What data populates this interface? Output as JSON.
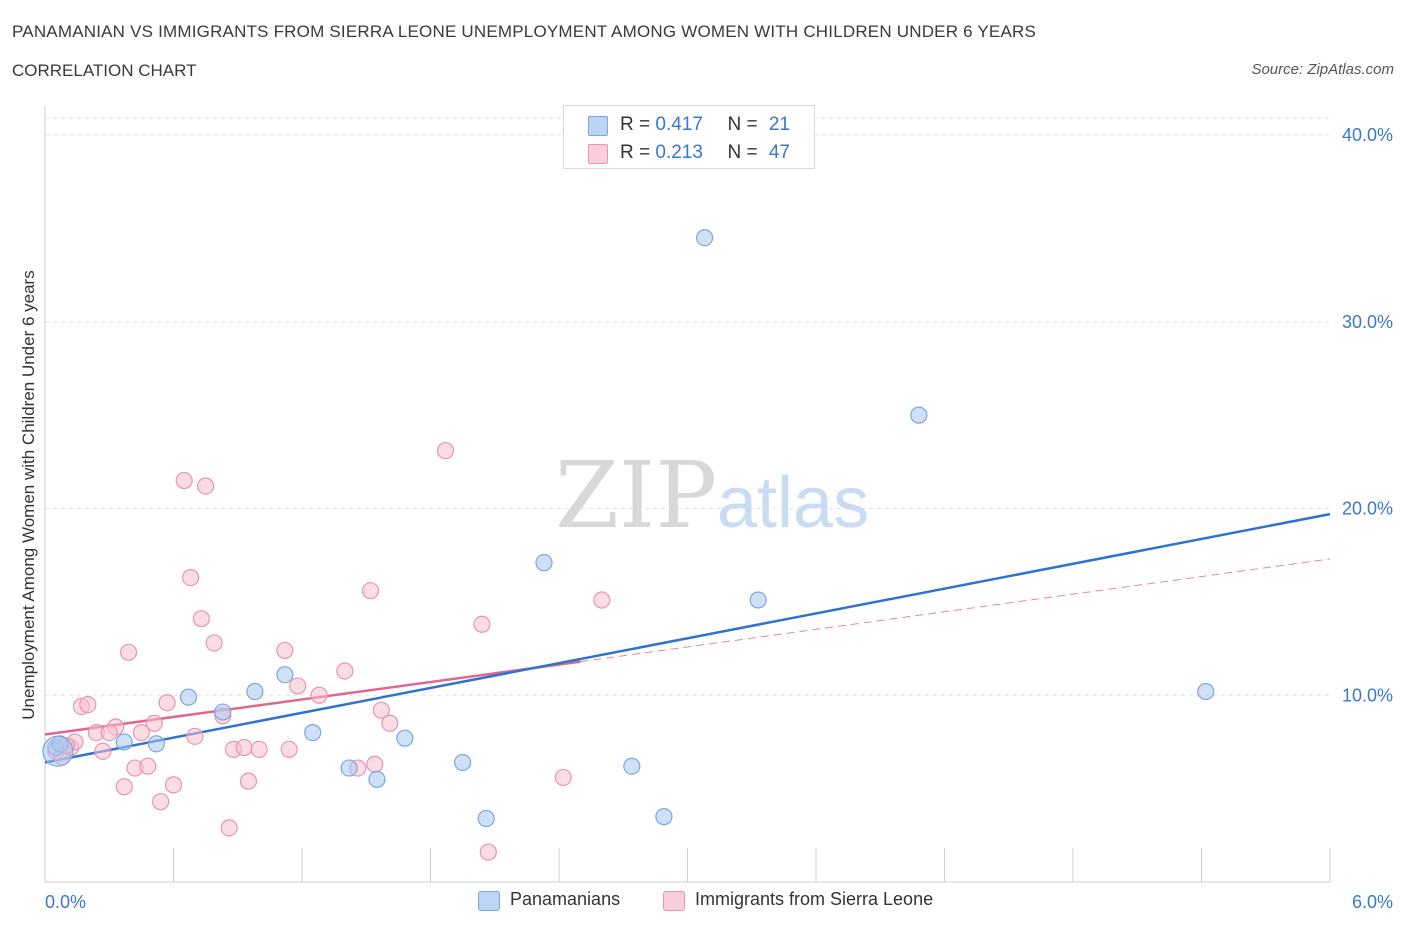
{
  "header": {
    "title": "PANAMANIAN VS IMMIGRANTS FROM SIERRA LEONE UNEMPLOYMENT AMONG WOMEN WITH CHILDREN UNDER 6 YEARS",
    "subtitle": "CORRELATION CHART",
    "source": "Source: ZipAtlas.com"
  },
  "watermark": {
    "zip": "ZIP",
    "atlas": "atlas"
  },
  "legend_top": [
    {
      "r_label": "R = ",
      "r_value": "0.417",
      "n_label": "N = ",
      "n_value": "21"
    },
    {
      "r_label": "R = ",
      "r_value": "0.213",
      "n_label": "N = ",
      "n_value": "47"
    }
  ],
  "legend_bottom": {
    "series0": "Panamanians",
    "series1": "Immigrants from Sierra Leone"
  },
  "chart_data": {
    "type": "scatter",
    "title": "PANAMANIAN VS IMMIGRANTS FROM SIERRA LEONE UNEMPLOYMENT AMONG WOMEN WITH CHILDREN UNDER 6 YEARS",
    "subtitle": "CORRELATION CHART",
    "xlabel": "",
    "ylabel": "Unemployment Among Women with Children Under 6 years",
    "xlim": [
      0,
      6
    ],
    "ylim": [
      0,
      40
    ],
    "x_tick_labels": [
      "0.0%",
      "6.0%"
    ],
    "y_ticks": [
      10,
      20,
      30,
      40
    ],
    "y_tick_labels": [
      "10.0%",
      "20.0%",
      "30.0%",
      "40.0%"
    ],
    "grid": true,
    "legend_position": "top-center",
    "series": [
      {
        "name": "Panamanians",
        "color": "#a9c8f0",
        "stroke": "#7aa7e0",
        "line_color": "#2f72d0",
        "R": 0.417,
        "N": 21,
        "trend": [
          [
            0.0,
            6.4
          ],
          [
            6.0,
            19.7
          ]
        ],
        "points": [
          [
            0.05,
            7.2
          ],
          [
            0.07,
            7.4
          ],
          [
            0.37,
            7.5
          ],
          [
            0.52,
            7.4
          ],
          [
            0.67,
            9.9
          ],
          [
            0.83,
            9.1
          ],
          [
            0.98,
            10.2
          ],
          [
            1.12,
            11.1
          ],
          [
            1.25,
            8.0
          ],
          [
            1.42,
            6.1
          ],
          [
            1.55,
            5.5
          ],
          [
            1.68,
            7.7
          ],
          [
            1.95,
            6.4
          ],
          [
            2.06,
            3.4
          ],
          [
            2.33,
            17.1
          ],
          [
            2.74,
            6.2
          ],
          [
            2.89,
            3.5
          ],
          [
            3.08,
            34.5
          ],
          [
            3.33,
            15.1
          ],
          [
            4.08,
            25.0
          ],
          [
            5.42,
            10.2
          ]
        ]
      },
      {
        "name": "Immigrants from Sierra Leone",
        "color": "#f6bfd0",
        "stroke": "#e994b0",
        "line_color": "#e06890",
        "R": 0.213,
        "N": 47,
        "trend": [
          [
            0.0,
            7.9
          ],
          [
            2.5,
            11.8
          ]
        ],
        "trend_extension": [
          [
            2.5,
            11.8
          ],
          [
            6.0,
            17.3
          ]
        ],
        "points": [
          [
            0.05,
            7.0
          ],
          [
            0.08,
            6.7
          ],
          [
            0.12,
            7.2
          ],
          [
            0.14,
            7.5
          ],
          [
            0.17,
            9.4
          ],
          [
            0.2,
            9.5
          ],
          [
            0.24,
            8.0
          ],
          [
            0.27,
            7.0
          ],
          [
            0.33,
            8.3
          ],
          [
            0.37,
            5.1
          ],
          [
            0.39,
            12.3
          ],
          [
            0.42,
            6.1
          ],
          [
            0.45,
            8.0
          ],
          [
            0.48,
            6.2
          ],
          [
            0.51,
            8.5
          ],
          [
            0.54,
            4.3
          ],
          [
            0.57,
            9.6
          ],
          [
            0.6,
            5.2
          ],
          [
            0.65,
            21.5
          ],
          [
            0.68,
            16.3
          ],
          [
            0.7,
            7.8
          ],
          [
            0.73,
            14.1
          ],
          [
            0.75,
            21.2
          ],
          [
            0.79,
            12.8
          ],
          [
            0.83,
            8.9
          ],
          [
            0.86,
            2.9
          ],
          [
            0.88,
            7.1
          ],
          [
            0.93,
            7.2
          ],
          [
            0.95,
            5.4
          ],
          [
            1.0,
            7.1
          ],
          [
            1.12,
            12.4
          ],
          [
            1.14,
            7.1
          ],
          [
            1.18,
            10.5
          ],
          [
            1.28,
            10.0
          ],
          [
            1.4,
            11.3
          ],
          [
            1.46,
            6.1
          ],
          [
            1.52,
            15.6
          ],
          [
            1.54,
            6.3
          ],
          [
            1.57,
            9.2
          ],
          [
            1.61,
            8.5
          ],
          [
            1.87,
            23.1
          ],
          [
            2.04,
            13.8
          ],
          [
            2.07,
            1.6
          ],
          [
            2.42,
            5.6
          ],
          [
            2.6,
            15.1
          ],
          [
            0.1,
            7.3
          ],
          [
            0.3,
            8.0
          ]
        ]
      }
    ]
  }
}
